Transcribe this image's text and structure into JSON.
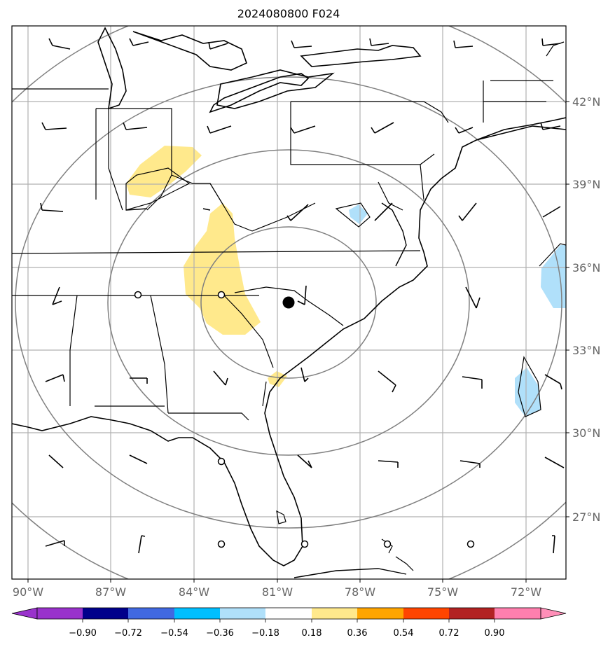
{
  "title": "2024080800 F024",
  "longitude_labels": [
    "90°W",
    "87°W",
    "84°W",
    "81°W",
    "78°W",
    "75°W",
    "72°W"
  ],
  "latitude_labels": [
    "42°N",
    "39°N",
    "36°N",
    "33°N",
    "30°N",
    "27°N"
  ],
  "colorbar": {
    "labels": [
      "−0.90",
      "−0.72",
      "−0.54",
      "−0.36",
      "−0.18",
      "0.18",
      "0.36",
      "0.54",
      "0.72",
      "0.90"
    ],
    "colors": [
      "#9932cc",
      "#00008b",
      "#4169e1",
      "#00bfff",
      "#b0e0fa",
      "#ffffff",
      "#ffe98c",
      "#ffa500",
      "#ff4500",
      "#b22222",
      "#ff7fae",
      "#ff8fb8"
    ]
  },
  "colors": {
    "positive_fill": "#ffe98c",
    "negative_fill": "#b0e0fa",
    "range_rings": "#808080",
    "grid": "#b0b0b0",
    "coastline": "#000000"
  },
  "center_marker": "filled-circle",
  "station_markers": "open-circle"
}
